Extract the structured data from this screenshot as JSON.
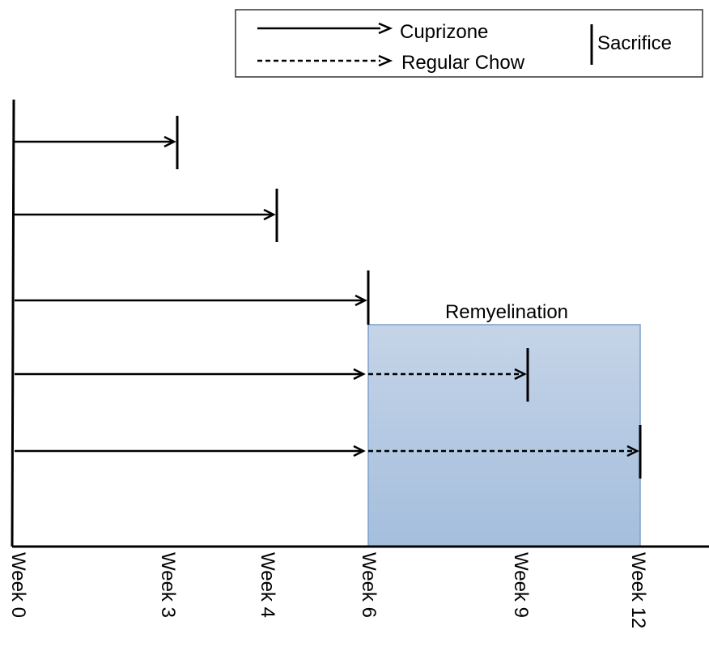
{
  "legend": {
    "cuprizone_label": "Cuprizone",
    "chow_label": "Regular Chow",
    "sacrifice_label": "Sacrifice"
  },
  "remyelination_label": "Remyelination",
  "axis_labels": [
    "Week 0",
    "Week 3",
    "Week 4",
    "Week 6",
    "Week 9",
    "Week 12"
  ],
  "groups": [
    {
      "cuprizone_weeks": 3,
      "chow_weeks": 0,
      "sacrifice_week": 3
    },
    {
      "cuprizone_weeks": 4,
      "chow_weeks": 0,
      "sacrifice_week": 4
    },
    {
      "cuprizone_weeks": 6,
      "chow_weeks": 0,
      "sacrifice_week": 6
    },
    {
      "cuprizone_weeks": 6,
      "chow_weeks": 3,
      "sacrifice_week": 9
    },
    {
      "cuprizone_weeks": 6,
      "chow_weeks": 6,
      "sacrifice_week": 12
    }
  ],
  "remyelination_weeks": [
    6,
    12
  ],
  "colors": {
    "line": "#000000",
    "remyelination_fill_top": "#c5d4e8",
    "remyelination_fill_bottom": "#a4bedc",
    "remyelination_border": "#7f9fcb"
  }
}
